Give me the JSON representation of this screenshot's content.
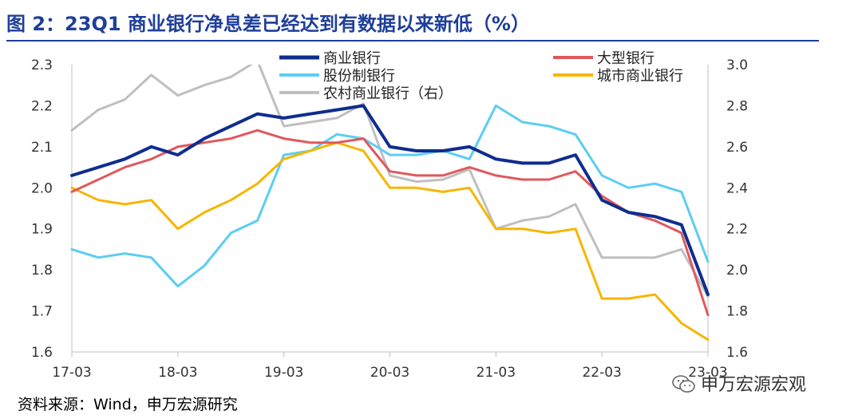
{
  "title": "图 2：23Q1 商业银行净息差已经达到有数据以来新低（%）",
  "source": "资料来源：Wind，申万宏源研究",
  "watermark": "申万宏源宏观",
  "chart_data": {
    "type": "line",
    "x": [
      "17-03",
      "17-06",
      "17-09",
      "17-12",
      "18-03",
      "18-06",
      "18-09",
      "18-12",
      "19-03",
      "19-06",
      "19-09",
      "19-12",
      "20-03",
      "20-06",
      "20-09",
      "20-12",
      "21-03",
      "21-06",
      "21-09",
      "21-12",
      "22-03",
      "22-06",
      "22-09",
      "22-12",
      "23-03"
    ],
    "x_tick_labels": [
      "17-03",
      "18-03",
      "19-03",
      "20-03",
      "21-03",
      "22-03",
      "23-03"
    ],
    "left_axis": {
      "ylim": [
        1.6,
        2.3
      ],
      "ticks": [
        "1.6",
        "1.7",
        "1.8",
        "1.9",
        "2.0",
        "2.1",
        "2.2",
        "2.3"
      ]
    },
    "right_axis": {
      "ylim": [
        1.6,
        3.0
      ],
      "ticks": [
        "1.6",
        "1.8",
        "2.0",
        "2.2",
        "2.4",
        "2.6",
        "2.8",
        "3.0"
      ]
    },
    "legend_placement": "top",
    "series": [
      {
        "name": "商业银行",
        "axis": "left",
        "color": "#0e2d8f",
        "stroke_width": 4,
        "values": [
          2.03,
          2.05,
          2.07,
          2.1,
          2.08,
          2.12,
          2.15,
          2.18,
          2.17,
          2.18,
          2.19,
          2.2,
          2.1,
          2.09,
          2.09,
          2.1,
          2.07,
          2.06,
          2.06,
          2.08,
          1.97,
          1.94,
          1.93,
          1.91,
          1.74
        ]
      },
      {
        "name": "大型银行",
        "axis": "left",
        "color": "#e0585c",
        "stroke_width": 3,
        "values": [
          1.99,
          2.02,
          2.05,
          2.07,
          2.1,
          2.11,
          2.12,
          2.14,
          2.12,
          2.11,
          2.11,
          2.12,
          2.04,
          2.03,
          2.03,
          2.05,
          2.03,
          2.02,
          2.02,
          2.04,
          1.98,
          1.94,
          1.92,
          1.89,
          1.69
        ]
      },
      {
        "name": "股份制银行",
        "axis": "left",
        "color": "#5ccdf2",
        "stroke_width": 3,
        "values": [
          1.85,
          1.83,
          1.84,
          1.83,
          1.76,
          1.81,
          1.89,
          1.92,
          2.08,
          2.09,
          2.13,
          2.12,
          2.08,
          2.08,
          2.09,
          2.07,
          2.2,
          2.16,
          2.15,
          2.13,
          2.03,
          2.0,
          2.01,
          1.99,
          1.82
        ]
      },
      {
        "name": "城市商业银行",
        "axis": "left",
        "color": "#f7b500",
        "stroke_width": 3,
        "values": [
          2.0,
          1.97,
          1.96,
          1.97,
          1.9,
          1.94,
          1.97,
          2.01,
          2.07,
          2.09,
          2.11,
          2.09,
          2.0,
          2.0,
          1.99,
          2.0,
          1.9,
          1.9,
          1.89,
          1.9,
          1.73,
          1.73,
          1.74,
          1.67,
          1.63
        ]
      },
      {
        "name": "农村商业银行（右）",
        "axis": "right",
        "color": "#bfbfbf",
        "stroke_width": 3,
        "values": [
          2.68,
          2.78,
          2.83,
          2.95,
          2.85,
          2.9,
          2.94,
          3.02,
          2.7,
          2.72,
          2.74,
          2.81,
          2.46,
          2.43,
          2.44,
          2.49,
          2.2,
          2.24,
          2.26,
          2.32,
          2.06,
          2.06,
          2.06,
          2.1,
          1.87
        ]
      }
    ]
  }
}
